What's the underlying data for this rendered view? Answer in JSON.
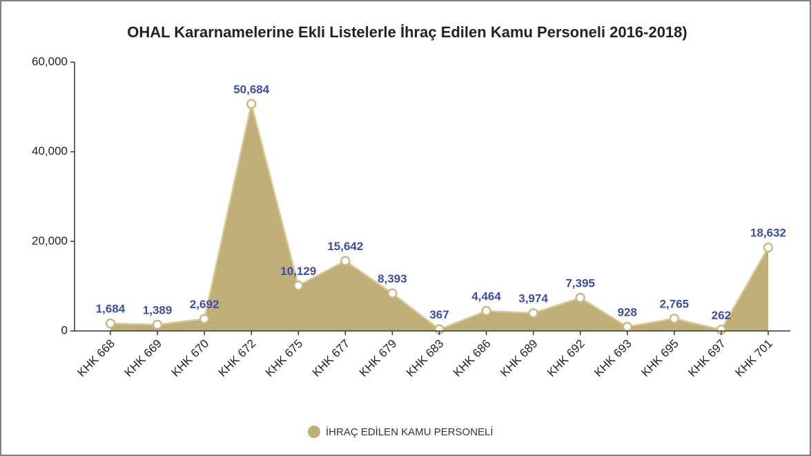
{
  "chart_data": {
    "type": "area",
    "title": "OHAL Kararnamelerine Ekli Listelerle İhraç Edilen Kamu Personeli 2016-2018)",
    "categories": [
      "KHK 668",
      "KHK 669",
      "KHK 670",
      "KHK 672",
      "KHK 675",
      "KHK 677",
      "KHK 679",
      "KHK 683",
      "KHK 686",
      "KHK 689",
      "KHK 692",
      "KHK 693",
      "KHK 695",
      "KHK 697",
      "KHK 701"
    ],
    "series": [
      {
        "name": "İHRAÇ EDİLEN KAMU PERSONELİ",
        "color": "#bfae78",
        "values": [
          1684,
          1389,
          2692,
          50684,
          10129,
          15642,
          8393,
          367,
          4464,
          3974,
          7395,
          928,
          2765,
          262,
          18632
        ],
        "value_labels": [
          "1,684",
          "1,389",
          "2,692",
          "50,684",
          "10,129",
          "15,642",
          "8,393",
          "367",
          "4,464",
          "3,974",
          "7,395",
          "928",
          "2,765",
          "262",
          "18,632"
        ]
      }
    ],
    "ylim": [
      0,
      60000
    ],
    "yticks": [
      0,
      {
        "value": 20000,
        "label": "20,000"
      },
      {
        "value": 40000,
        "label": "40,000"
      },
      {
        "value": 60000,
        "label": "60,000"
      }
    ],
    "legend": "bottom"
  }
}
